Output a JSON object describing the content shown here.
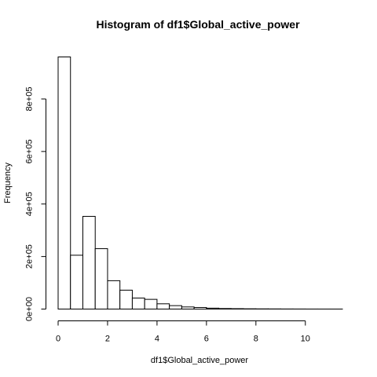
{
  "chart_data": {
    "type": "bar",
    "subtype": "histogram",
    "title": "Histogram of df1$Global_active_power",
    "xlabel": "df1$Global_active_power",
    "ylabel": "Frequency",
    "bin_width": 0.5,
    "bins": [
      {
        "start": 0.0,
        "end": 0.5,
        "value": 960000
      },
      {
        "start": 0.5,
        "end": 1.0,
        "value": 205000
      },
      {
        "start": 1.0,
        "end": 1.5,
        "value": 353000
      },
      {
        "start": 1.5,
        "end": 2.0,
        "value": 230000
      },
      {
        "start": 2.0,
        "end": 2.5,
        "value": 108000
      },
      {
        "start": 2.5,
        "end": 3.0,
        "value": 72000
      },
      {
        "start": 3.0,
        "end": 3.5,
        "value": 42000
      },
      {
        "start": 3.5,
        "end": 4.0,
        "value": 37000
      },
      {
        "start": 4.0,
        "end": 4.5,
        "value": 20000
      },
      {
        "start": 4.5,
        "end": 5.0,
        "value": 13000
      },
      {
        "start": 5.0,
        "end": 5.5,
        "value": 8000
      },
      {
        "start": 5.5,
        "end": 6.0,
        "value": 6000
      },
      {
        "start": 6.0,
        "end": 6.5,
        "value": 3500
      },
      {
        "start": 6.5,
        "end": 7.0,
        "value": 2000
      },
      {
        "start": 7.0,
        "end": 7.5,
        "value": 1500
      },
      {
        "start": 7.5,
        "end": 8.0,
        "value": 1000
      },
      {
        "start": 8.0,
        "end": 8.5,
        "value": 700
      },
      {
        "start": 8.5,
        "end": 9.0,
        "value": 500
      },
      {
        "start": 9.0,
        "end": 9.5,
        "value": 300
      },
      {
        "start": 9.5,
        "end": 10.0,
        "value": 200
      },
      {
        "start": 10.0,
        "end": 10.5,
        "value": 100
      },
      {
        "start": 10.5,
        "end": 11.0,
        "value": 60
      },
      {
        "start": 11.0,
        "end": 11.5,
        "value": 30
      }
    ],
    "xlim": [
      0,
      11.5
    ],
    "ylim": [
      0,
      1000000
    ],
    "x_ticks": [
      {
        "value": 0,
        "label": "0"
      },
      {
        "value": 2,
        "label": "2"
      },
      {
        "value": 4,
        "label": "4"
      },
      {
        "value": 6,
        "label": "6"
      },
      {
        "value": 8,
        "label": "8"
      },
      {
        "value": 10,
        "label": "10"
      }
    ],
    "y_ticks": [
      {
        "value": 0,
        "label": "0e+00"
      },
      {
        "value": 200000,
        "label": "2e+05"
      },
      {
        "value": 400000,
        "label": "4e+05"
      },
      {
        "value": 600000,
        "label": "6e+05"
      },
      {
        "value": 800000,
        "label": "8e+05"
      }
    ],
    "grid": false,
    "colors": {
      "bar_fill": "#ffffff",
      "bar_stroke": "#000000",
      "axis": "#000000"
    }
  }
}
